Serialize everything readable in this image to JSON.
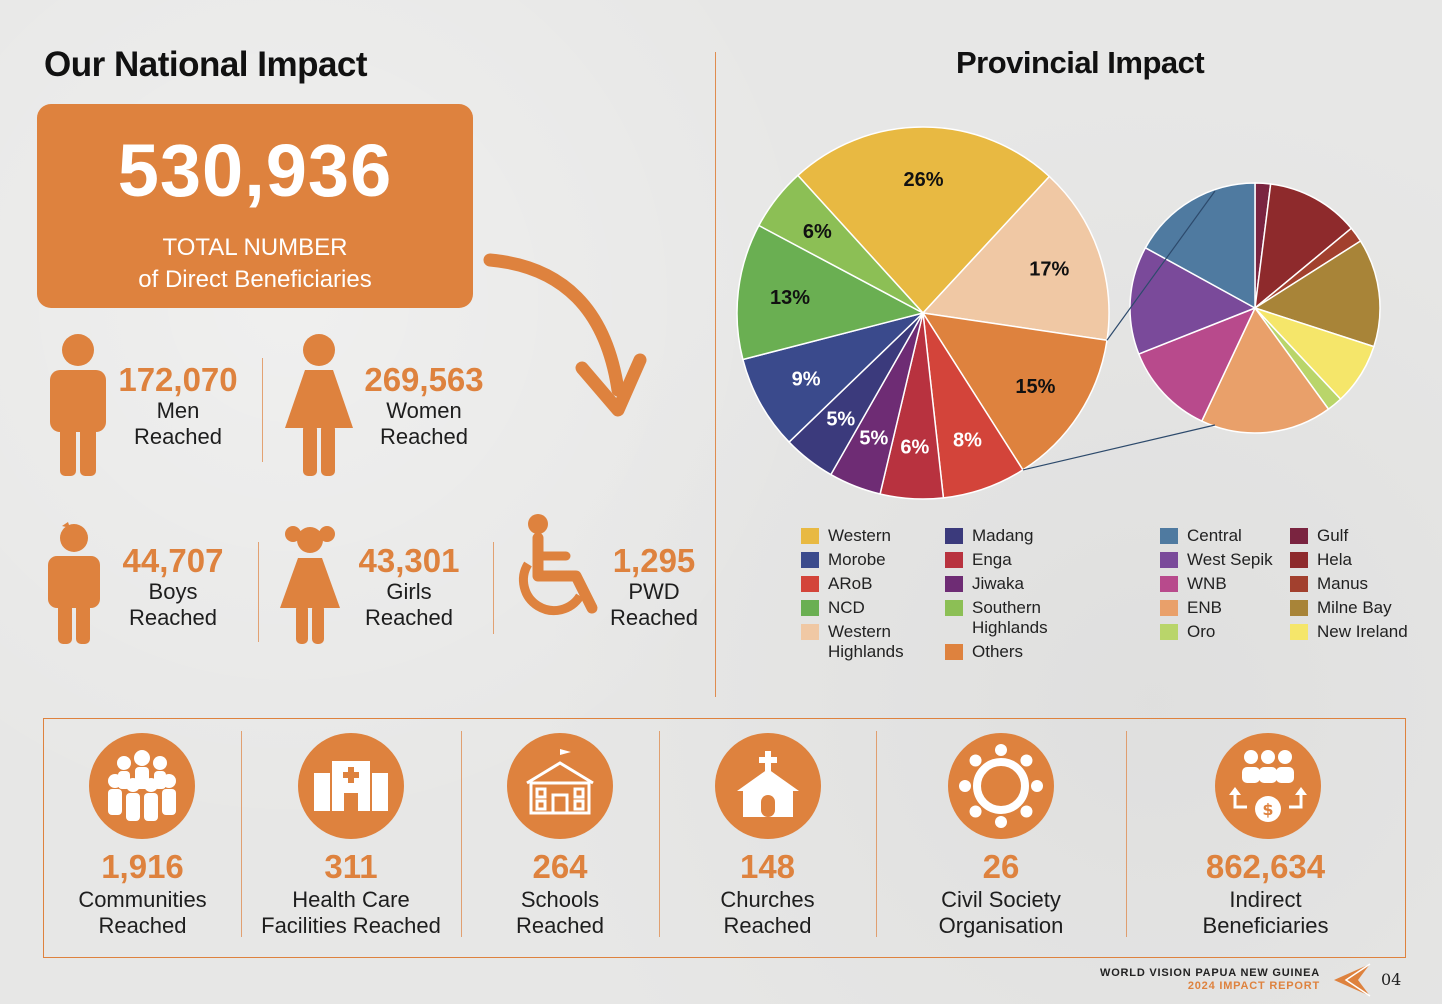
{
  "national": {
    "title": "Our National Impact",
    "total_number": "530,936",
    "total_label_1": "TOTAL NUMBER",
    "total_label_2": "of Direct Beneficiaries",
    "men": {
      "num": "172,070",
      "l1": "Men",
      "l2": "Reached"
    },
    "women": {
      "num": "269,563",
      "l1": "Women",
      "l2": "Reached"
    },
    "boys": {
      "num": "44,707",
      "l1": "Boys",
      "l2": "Reached"
    },
    "girls": {
      "num": "43,301",
      "l1": "Girls",
      "l2": "Reached"
    },
    "pwd": {
      "num": "1,295",
      "l1": "PWD",
      "l2": "Reached"
    }
  },
  "provincial": {
    "title": "Provincial Impact",
    "legend_left": [
      {
        "label_1": "Western",
        "label_2": "",
        "color": "#e8b942"
      },
      {
        "label_1": "Morobe",
        "label_2": "",
        "color": "#3a4a8c"
      },
      {
        "label_1": "ARoB",
        "label_2": "",
        "color": "#d3443a"
      },
      {
        "label_1": "NCD",
        "label_2": "",
        "color": "#6aaf52"
      },
      {
        "label_1": "Western",
        "label_2": "Highlands",
        "color": "#f0c8a4"
      },
      {
        "label_1": "Madang",
        "label_2": "",
        "color": "#3b3a7c"
      },
      {
        "label_1": "Enga",
        "label_2": "",
        "color": "#b8323f"
      },
      {
        "label_1": "Jiwaka",
        "label_2": "",
        "color": "#6e2c74"
      },
      {
        "label_1": "Southern",
        "label_2": "Highlands",
        "color": "#8cbf55"
      },
      {
        "label_1": "Others",
        "label_2": "",
        "color": "#de823e"
      }
    ],
    "legend_right": [
      {
        "label_1": "Central",
        "label_2": "",
        "color": "#4f7aa0"
      },
      {
        "label_1": "West Sepik",
        "label_2": "",
        "color": "#7a4a9a"
      },
      {
        "label_1": "WNB",
        "label_2": "",
        "color": "#b84a8c"
      },
      {
        "label_1": "ENB",
        "label_2": "",
        "color": "#e9a06a"
      },
      {
        "label_1": "Oro",
        "label_2": "",
        "color": "#b9d56a"
      },
      {
        "label_1": "Gulf",
        "label_2": "",
        "color": "#7a2440"
      },
      {
        "label_1": "Hela",
        "label_2": "",
        "color": "#8e2a2c"
      },
      {
        "label_1": "Manus",
        "label_2": "",
        "color": "#a2402e"
      },
      {
        "label_1": "Milne Bay",
        "label_2": "",
        "color": "#a88438"
      },
      {
        "label_1": "New Ireland",
        "label_2": "",
        "color": "#f5e66a"
      }
    ]
  },
  "chart_data": {
    "type": "pie",
    "title": "Provincial Impact",
    "main_pie": [
      {
        "name": "Western",
        "value": 26,
        "label": "26%",
        "color": "#e8b942"
      },
      {
        "name": "Western Highlands",
        "value": 17,
        "label": "17%",
        "color": "#f0c8a4"
      },
      {
        "name": "Others",
        "value": 15,
        "label": "15%",
        "color": "#de823e"
      },
      {
        "name": "ARoB",
        "value": 8,
        "label": "8%",
        "color": "#d3443a"
      },
      {
        "name": "Enga",
        "value": 6,
        "label": "6%",
        "color": "#b8323f"
      },
      {
        "name": "Jiwaka",
        "value": 5,
        "label": "5%",
        "color": "#6e2c74"
      },
      {
        "name": "Madang",
        "value": 5,
        "label": "5%",
        "color": "#3b3a7c"
      },
      {
        "name": "Morobe",
        "value": 9,
        "label": "9%",
        "color": "#3a4a8c"
      },
      {
        "name": "NCD",
        "value": 13,
        "label": "13%",
        "color": "#6aaf52"
      },
      {
        "name": "Southern Highlands",
        "value": 6,
        "label": "6%",
        "color": "#8cbf55"
      }
    ],
    "others_breakdown": [
      {
        "name": "Gulf",
        "value": 2,
        "color": "#7a2440"
      },
      {
        "name": "Hela",
        "value": 12,
        "color": "#8e2a2c"
      },
      {
        "name": "Manus",
        "value": 2,
        "color": "#a2402e"
      },
      {
        "name": "Milne Bay",
        "value": 14,
        "color": "#a88438"
      },
      {
        "name": "New Ireland",
        "value": 8,
        "color": "#f5e66a"
      },
      {
        "name": "Oro",
        "value": 2,
        "color": "#b9d56a"
      },
      {
        "name": "ENB",
        "value": 17,
        "color": "#e9a06a"
      },
      {
        "name": "WNB",
        "value": 12,
        "color": "#b84a8c"
      },
      {
        "name": "West Sepik",
        "value": 14,
        "color": "#7a4a9a"
      },
      {
        "name": "Central",
        "value": 17,
        "color": "#4f7aa0"
      }
    ]
  },
  "bottom": [
    {
      "num": "1,916",
      "l1": "Communities",
      "l2": "Reached",
      "icon": "community-icon"
    },
    {
      "num": "311",
      "l1": "Health Care",
      "l2": "Facilities Reached",
      "icon": "hospital-icon"
    },
    {
      "num": "264",
      "l1": "Schools",
      "l2": "Reached",
      "icon": "school-icon"
    },
    {
      "num": "148",
      "l1": "Churches",
      "l2": "Reached",
      "icon": "church-icon"
    },
    {
      "num": "26",
      "l1": "Civil Society",
      "l2": "Organisation",
      "icon": "circle-people-icon"
    },
    {
      "num": "862,634",
      "l1": "Indirect",
      "l2": "Beneficiaries",
      "icon": "people-money-icon"
    }
  ],
  "footer": {
    "org": "WORLD VISION PAPUA NEW GUINEA",
    "report": "2024 IMPACT REPORT",
    "page": "04"
  },
  "colors": {
    "accent": "#de823e"
  }
}
